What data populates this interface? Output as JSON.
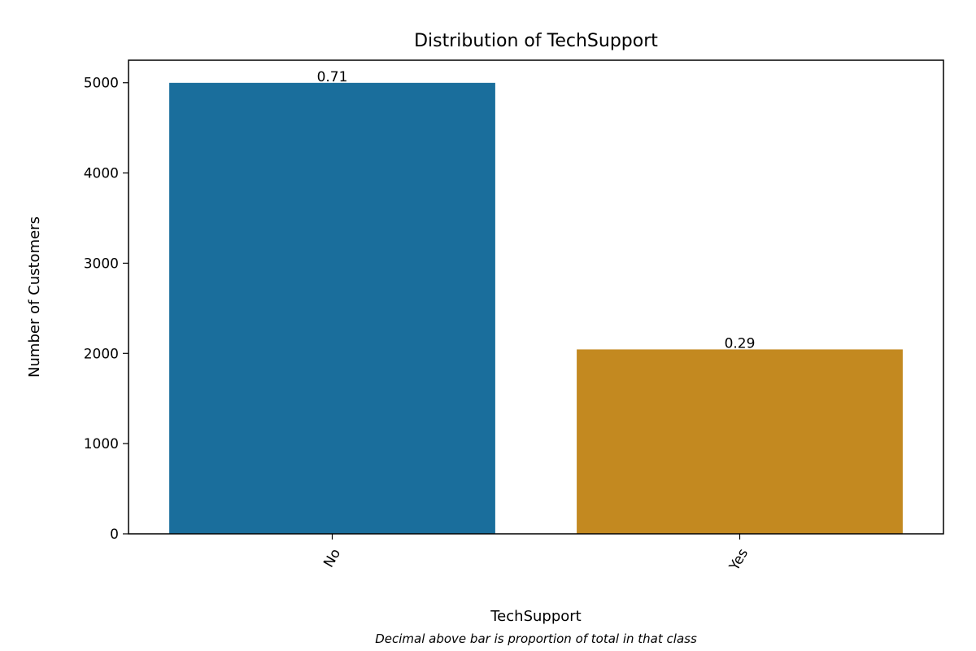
{
  "chart_data": {
    "type": "bar",
    "title": "Distribution of TechSupport",
    "xlabel": "TechSupport",
    "ylabel": "Number of Customers",
    "caption": "Decimal above bar is proportion of total in that class",
    "categories": [
      "No",
      "Yes"
    ],
    "values": [
      4999,
      2044
    ],
    "labels": [
      "0.71",
      "0.29"
    ],
    "colors": [
      "#1a6e9c",
      "#c38920"
    ],
    "ylim": [
      0,
      5250
    ],
    "yticks": [
      0,
      1000,
      2000,
      3000,
      4000,
      5000
    ],
    "ytick_labels": [
      "0",
      "1000",
      "2000",
      "3000",
      "4000",
      "5000"
    ],
    "x_tick_rotation_deg": -60,
    "grid": false,
    "legend": "none"
  }
}
